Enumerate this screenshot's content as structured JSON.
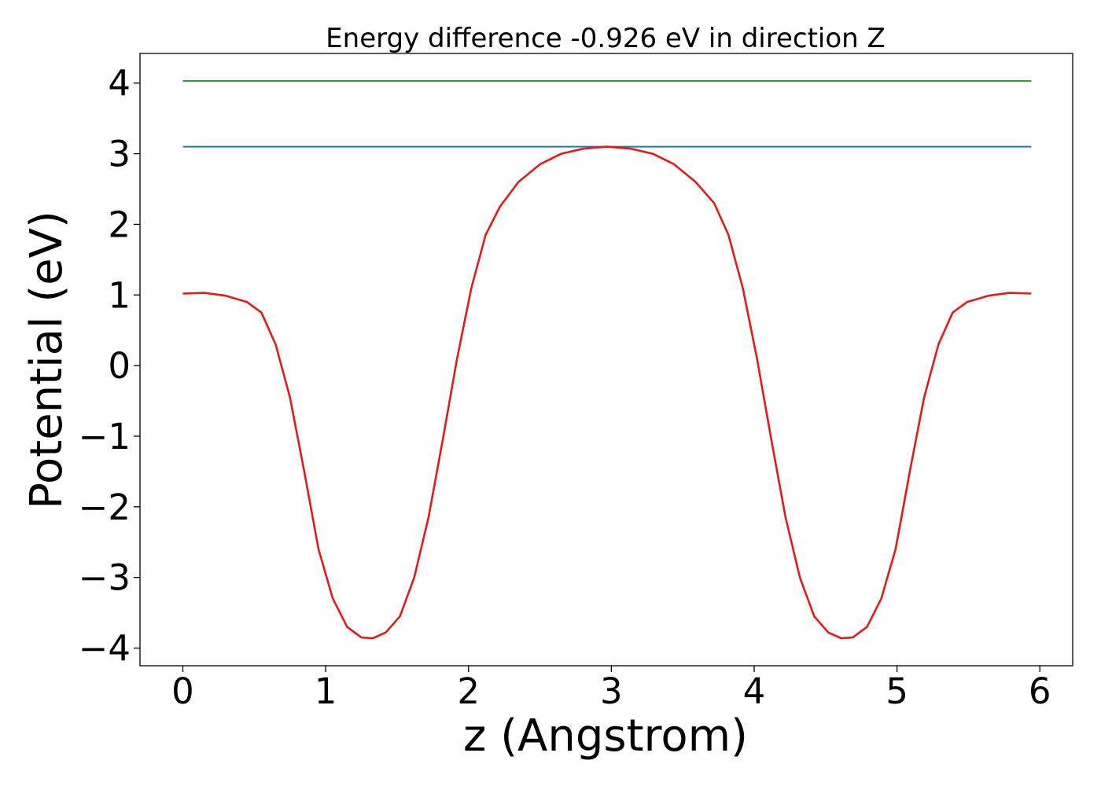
{
  "chart_data": {
    "type": "line",
    "title": "Energy difference -0.926 eV in direction Z",
    "xlabel": "z (Angstrom)",
    "ylabel": "Potential (eV)",
    "xlim": [
      -0.3,
      6.23
    ],
    "ylim": [
      -4.25,
      4.42
    ],
    "xticks": [
      0,
      1,
      2,
      3,
      4,
      5,
      6
    ],
    "xtick_labels": [
      "0",
      "1",
      "2",
      "3",
      "4",
      "5",
      "6"
    ],
    "yticks": [
      4,
      3,
      2,
      1,
      0,
      -1,
      -2,
      -3,
      -4
    ],
    "ytick_labels": [
      "4",
      "3",
      "2",
      "1",
      "0",
      "−1",
      "−2",
      "−3",
      "−4"
    ],
    "grid": false,
    "series": [
      {
        "color": "#2ca02c",
        "x": [
          0,
          5.94
        ],
        "y": [
          4.03,
          4.03
        ]
      },
      {
        "color": "#1f77b4",
        "x": [
          0,
          5.94
        ],
        "y": [
          3.1,
          3.1
        ]
      },
      {
        "color": "#e31a1c",
        "x": [
          0,
          0.15,
          0.3,
          0.45,
          0.55,
          0.65,
          0.75,
          0.85,
          0.95,
          1.05,
          1.15,
          1.25,
          1.33,
          1.42,
          1.52,
          1.62,
          1.72,
          1.82,
          1.92,
          2.02,
          2.12,
          2.22,
          2.35,
          2.5,
          2.65,
          2.8,
          2.97,
          3.14,
          3.29,
          3.44,
          3.59,
          3.72,
          3.82,
          3.92,
          4.02,
          4.12,
          4.22,
          4.32,
          4.42,
          4.52,
          4.61,
          4.69,
          4.79,
          4.89,
          4.99,
          5.09,
          5.19,
          5.29,
          5.39,
          5.49,
          5.64,
          5.79,
          5.94
        ],
        "y": [
          1.02,
          1.03,
          0.99,
          0.9,
          0.75,
          0.3,
          -0.45,
          -1.5,
          -2.6,
          -3.3,
          -3.7,
          -3.85,
          -3.86,
          -3.78,
          -3.55,
          -3.0,
          -2.15,
          -1.05,
          0.1,
          1.1,
          1.85,
          2.25,
          2.6,
          2.85,
          3.0,
          3.07,
          3.1,
          3.07,
          3.0,
          2.85,
          2.6,
          2.3,
          1.85,
          1.1,
          0.1,
          -1.05,
          -2.15,
          -3.0,
          -3.55,
          -3.78,
          -3.86,
          -3.85,
          -3.7,
          -3.3,
          -2.6,
          -1.5,
          -0.45,
          0.3,
          0.75,
          0.9,
          0.99,
          1.03,
          1.02
        ]
      }
    ]
  }
}
